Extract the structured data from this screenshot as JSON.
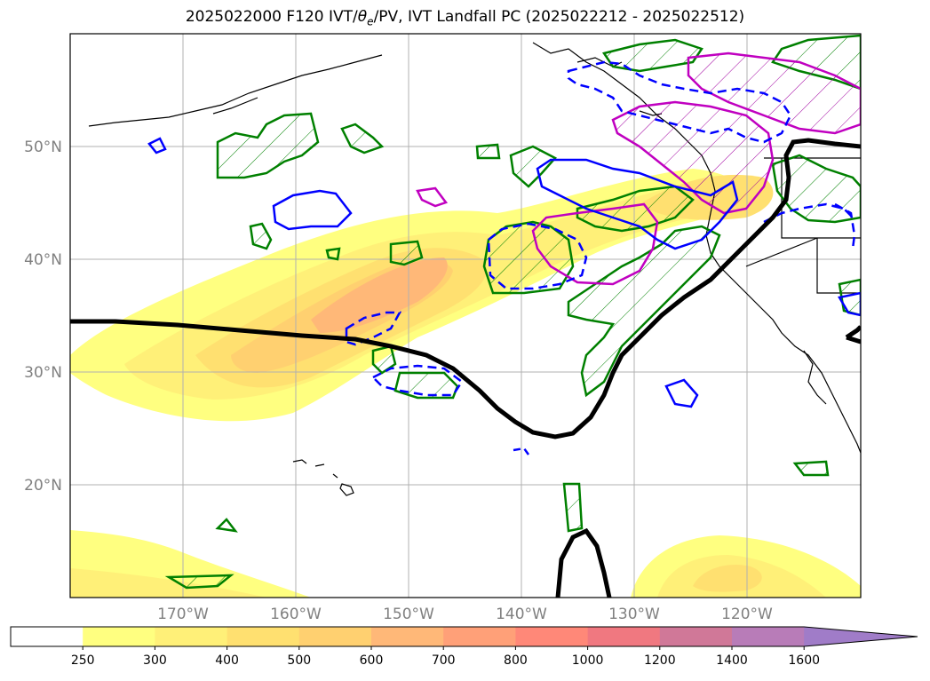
{
  "title": "2025022000 F120 IVT/",
  "title_theta": "θ",
  "title_e": "e",
  "title_rest": "/PV, IVT Landfall PC (2025022212 - 2025022512)",
  "map": {
    "lat_labels": [
      "50°N",
      "40°N",
      "30°N",
      "20°N"
    ],
    "lon_labels": [
      "170°W",
      "160°W",
      "150°W",
      "140°W",
      "130°W",
      "120°W"
    ],
    "colors": {
      "pc_contour": "#000000",
      "pv_positive": "#008000",
      "theta_e_dashed": "#0000ff",
      "magenta_contour": "#c000c0"
    }
  },
  "colorbar": {
    "levels": [
      "250",
      "300",
      "400",
      "500",
      "600",
      "700",
      "800",
      "1000",
      "1200",
      "1400",
      "1600"
    ],
    "colors": [
      "#ffffff",
      "#ffff80",
      "#fff078",
      "#ffe070",
      "#ffd070",
      "#ffb878",
      "#ffa078",
      "#ff8878",
      "#f07880",
      "#d07898",
      "#b87cb8",
      "#a07cc8"
    ]
  }
}
